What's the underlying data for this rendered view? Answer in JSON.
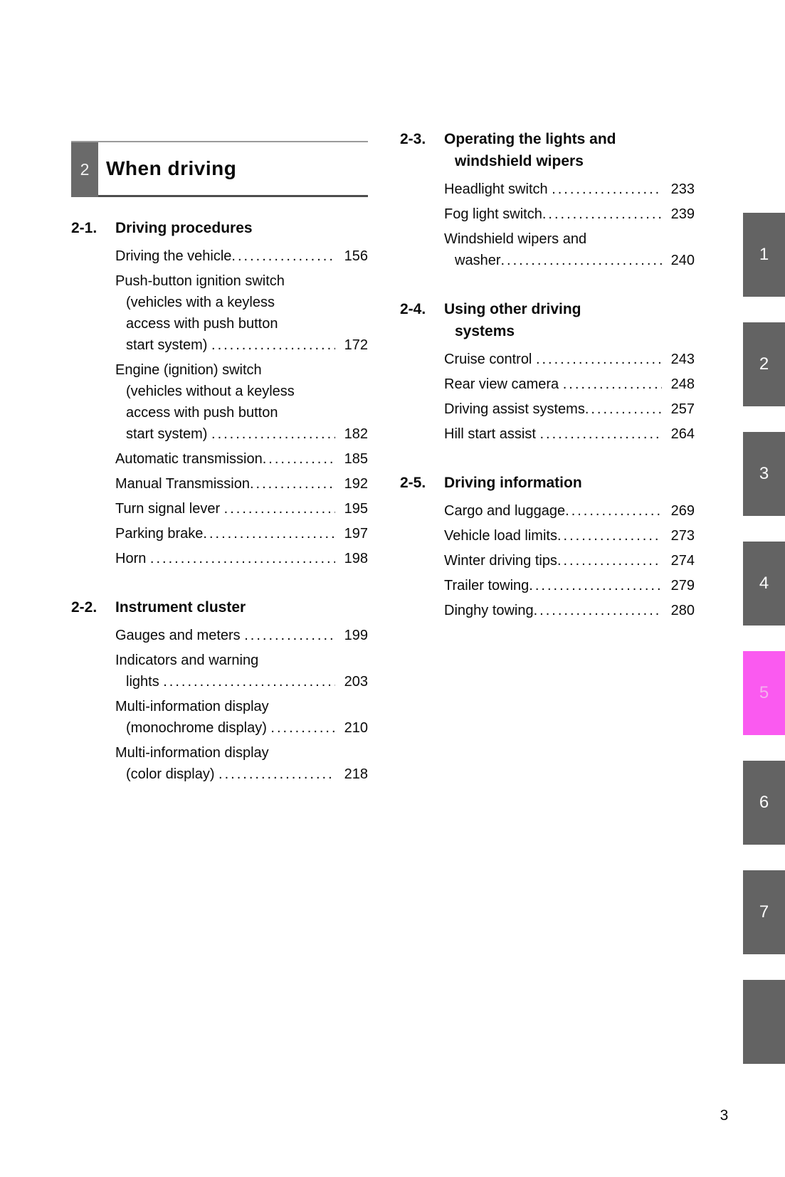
{
  "chapter": {
    "number": "2",
    "title": "When driving"
  },
  "columns": {
    "left": {
      "sections": [
        {
          "number": "2-1.",
          "title": "Driving procedures",
          "entries": [
            {
              "last": "Driving the vehicle",
              "page": "156"
            },
            {
              "lines": [
                "Push-button ignition switch",
                "(vehicles with a keyless",
                "access with push button"
              ],
              "last": "start system) ",
              "page": "172"
            },
            {
              "lines": [
                "Engine (ignition) switch",
                "(vehicles without a keyless",
                "access with push button"
              ],
              "last": "start system) ",
              "page": "182"
            },
            {
              "last": "Automatic transmission",
              "page": "185"
            },
            {
              "last": "Manual Transmission",
              "page": "192"
            },
            {
              "last": "Turn signal lever ",
              "page": "195"
            },
            {
              "last": "Parking brake",
              "page": "197"
            },
            {
              "last": "Horn ",
              "page": "198"
            }
          ]
        },
        {
          "number": "2-2.",
          "title": "Instrument cluster",
          "entries": [
            {
              "last": "Gauges and meters ",
              "page": "199"
            },
            {
              "lines": [
                "Indicators and warning"
              ],
              "last": "lights ",
              "page": "203"
            },
            {
              "lines": [
                "Multi-information display"
              ],
              "last": "(monochrome display) ",
              "page": "210"
            },
            {
              "lines": [
                "Multi-information display"
              ],
              "last": "(color display) ",
              "page": "218"
            }
          ]
        }
      ]
    },
    "right": {
      "sections": [
        {
          "number": "2-3.",
          "title": "Operating the lights and\nwindshield wipers",
          "entries": [
            {
              "last": "Headlight switch ",
              "page": "233"
            },
            {
              "last": "Fog light switch",
              "page": "239"
            },
            {
              "lines": [
                "Windshield wipers and"
              ],
              "last": "washer",
              "page": "240"
            }
          ]
        },
        {
          "number": "2-4.",
          "title": "Using other driving\nsystems",
          "entries": [
            {
              "last": "Cruise control ",
              "page": "243"
            },
            {
              "last": "Rear view camera ",
              "page": "248"
            },
            {
              "last": "Driving assist systems",
              "page": "257"
            },
            {
              "last": "Hill start assist ",
              "page": "264"
            }
          ]
        },
        {
          "number": "2-5.",
          "title": "Driving information",
          "entries": [
            {
              "last": "Cargo and luggage",
              "page": "269"
            },
            {
              "last": "Vehicle load limits",
              "page": "273"
            },
            {
              "last": "Winter driving tips",
              "page": "274"
            },
            {
              "last": "Trailer towing",
              "page": "279"
            },
            {
              "last": "Dinghy towing",
              "page": "280"
            }
          ]
        }
      ]
    }
  },
  "side_tabs": [
    {
      "label": "1",
      "active": false
    },
    {
      "label": "2",
      "active": false
    },
    {
      "label": "3",
      "active": false
    },
    {
      "label": "4",
      "active": false
    },
    {
      "label": "5",
      "active": true
    },
    {
      "label": "6",
      "active": false
    },
    {
      "label": "7",
      "active": false
    },
    {
      "label": "",
      "active": false
    }
  ],
  "footer": {
    "page_number": "3"
  },
  "colors": {
    "tab_gray": "#636363",
    "tab_active_magenta": "#fa5af0",
    "chapter_box_gray": "#6a6a6a",
    "text": "#0a0a0a"
  }
}
